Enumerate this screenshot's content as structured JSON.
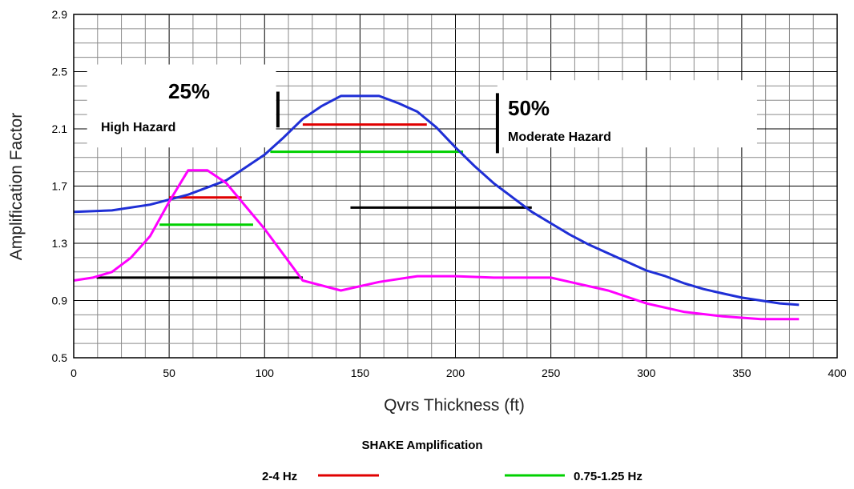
{
  "chart_data": {
    "type": "line",
    "xlabel": "Qvrs Thickness (ft)",
    "ylabel": "Amplification Factor",
    "xlim": [
      0,
      400
    ],
    "ylim": [
      0.5,
      2.9
    ],
    "xticks": [
      0,
      50,
      100,
      150,
      200,
      250,
      300,
      350,
      400
    ],
    "yticks": [
      0.5,
      0.9,
      1.3,
      1.7,
      2.1,
      2.5,
      2.9
    ],
    "ytick_labels": [
      "0.5",
      "0.9",
      "1.3",
      "1.7",
      "2.1",
      "2.5",
      "2.9"
    ],
    "grid": true,
    "series": [
      {
        "color": "#1f2fd6",
        "x": [
          0,
          20,
          40,
          60,
          80,
          100,
          110,
          120,
          130,
          140,
          150,
          160,
          170,
          180,
          190,
          200,
          210,
          220,
          230,
          240,
          250,
          260,
          270,
          280,
          290,
          300,
          310,
          320,
          330,
          340,
          350,
          360,
          370,
          380
        ],
        "y": [
          1.52,
          1.53,
          1.57,
          1.64,
          1.74,
          1.92,
          2.04,
          2.17,
          2.26,
          2.33,
          2.33,
          2.33,
          2.28,
          2.22,
          2.11,
          1.97,
          1.84,
          1.72,
          1.62,
          1.52,
          1.44,
          1.36,
          1.29,
          1.23,
          1.17,
          1.11,
          1.07,
          1.02,
          0.98,
          0.95,
          0.92,
          0.9,
          0.88,
          0.87
        ]
      },
      {
        "color": "#ff00ff",
        "x": [
          0,
          10,
          20,
          30,
          40,
          50,
          60,
          70,
          80,
          90,
          100,
          110,
          120,
          140,
          160,
          180,
          200,
          220,
          240,
          250,
          260,
          280,
          300,
          320,
          340,
          360,
          380
        ],
        "y": [
          1.04,
          1.06,
          1.1,
          1.2,
          1.35,
          1.59,
          1.81,
          1.81,
          1.72,
          1.56,
          1.4,
          1.22,
          1.04,
          0.97,
          1.03,
          1.07,
          1.07,
          1.06,
          1.06,
          1.06,
          1.03,
          0.97,
          0.88,
          0.82,
          0.79,
          0.77,
          0.77
        ]
      }
    ],
    "ranges": [
      {
        "color": "#e00000",
        "x": [
          50,
          88
        ],
        "y": 1.62
      },
      {
        "color": "#00d000",
        "x": [
          45,
          94
        ],
        "y": 1.43
      },
      {
        "color": "#000000",
        "x": [
          12,
          120
        ],
        "y": 1.06
      },
      {
        "color": "#e00000",
        "x": [
          120,
          185
        ],
        "y": 2.13
      },
      {
        "color": "#00d000",
        "x": [
          103,
          204
        ],
        "y": 1.94
      },
      {
        "color": "#000000",
        "x": [
          145,
          240
        ],
        "y": 1.55
      }
    ],
    "markers": [
      {
        "x": 107,
        "y_from": 2.11,
        "y_to": 2.36
      },
      {
        "x": 222,
        "y_from": 1.93,
        "y_to": 2.35
      }
    ],
    "annotations": [
      {
        "text": "25%",
        "style": "percent"
      },
      {
        "text": "High Hazard",
        "style": "hazard"
      },
      {
        "text": "50%",
        "style": "percent"
      },
      {
        "text": "Moderate Hazard",
        "style": "hazard"
      }
    ],
    "legend": {
      "title": "SHAKE Amplification",
      "placement": "bottom",
      "items": [
        {
          "label": "2-4 Hz",
          "color": "#e00000"
        },
        {
          "label": "0.75-1.25 Hz",
          "color": "#00d000"
        }
      ]
    }
  }
}
